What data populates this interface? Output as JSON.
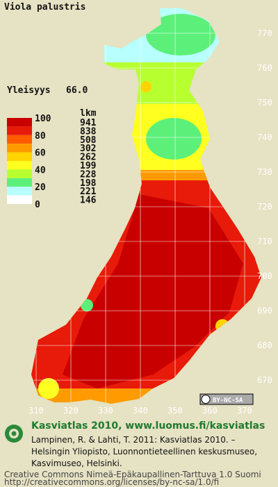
{
  "title": "Viola palustris",
  "frequency": {
    "label": "Yleisyys",
    "value": "66.0"
  },
  "legend": {
    "scale": [
      100,
      80,
      60,
      40,
      20,
      0
    ],
    "count_header": "lkm",
    "counts": [
      941,
      838,
      508,
      302,
      262,
      199,
      228,
      198,
      221,
      146
    ],
    "colors": [
      "#c80000",
      "#e81a0a",
      "#ff5a00",
      "#ff9a00",
      "#ffd400",
      "#ffff20",
      "#b8ff30",
      "#5cf07a",
      "#b8ffff",
      "#ffffff"
    ]
  },
  "y_axis": [
    770,
    760,
    750,
    740,
    730,
    720,
    710,
    700,
    690,
    680,
    670
  ],
  "x_axis": [
    310,
    320,
    330,
    340,
    350,
    360,
    370
  ],
  "badge": "BY-NC-SA",
  "footer": {
    "heading": "Kasviatlas 2010, www.luomus.fi/kasviatlas",
    "citation": [
      "Lampinen, R. & Lahti, T. 2011: Kasviatlas 2010. –",
      "Helsingin Yliopisto, Luonnontieteellinen keskusmuseo,",
      "Kasvimuseo, Helsinki."
    ],
    "license": "Creative Commons Nimeä-Epäkaupallinen-Tarttuva 1.0 Suomi",
    "url": "http://creativecommons.org/licenses/by-nc-sa/1.0/fi"
  }
}
